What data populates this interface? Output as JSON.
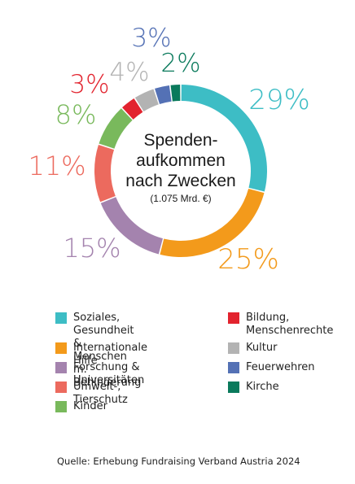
{
  "chart_data": {
    "type": "donut",
    "title_lines": [
      "Spenden-",
      "aufkommen",
      "nach Zwecken"
    ],
    "subtitle": "(1.075 Mrd. €)",
    "slices": [
      {
        "label": "Soziales, Gesundheit & Menschen m. Behinderung",
        "value": 29,
        "pct_label": "29%",
        "color": "#3dbdc5"
      },
      {
        "label": "Internationale Hilfe",
        "value": 25,
        "pct_label": "25%",
        "color": "#f39a1b"
      },
      {
        "label": "Forschung & Universitäten",
        "value": 15,
        "pct_label": "15%",
        "color": "#a483ae"
      },
      {
        "label": "Umwelt-, Tierschutz",
        "value": 11,
        "pct_label": "11%",
        "color": "#ec6a5e"
      },
      {
        "label": "Kinder",
        "value": 8,
        "pct_label": "8%",
        "color": "#79b95c"
      },
      {
        "label": "Bildung, Menschenrechte",
        "value": 3,
        "pct_label": "3%",
        "color": "#e2232e"
      },
      {
        "label": "Kultur",
        "value": 4,
        "pct_label": "4%",
        "color": "#b3b3b3"
      },
      {
        "label": "Feuerwehren",
        "value": 3,
        "pct_label": "3%",
        "color": "#5471b5"
      },
      {
        "label": "Kirche",
        "value": 2,
        "pct_label": "2%",
        "color": "#0a7a5c"
      }
    ]
  },
  "legend": {
    "left": [
      {
        "lines": [
          "Soziales, Gesundheit &",
          "Menschen m. Behinderung"
        ],
        "color": "#3dbdc5"
      },
      {
        "lines": [
          "Internationale Hilfe"
        ],
        "color": "#f39a1b"
      },
      {
        "lines": [
          "Forschung & Universitäten"
        ],
        "color": "#a483ae"
      },
      {
        "lines": [
          "Umwelt-, Tierschutz"
        ],
        "color": "#ec6a5e"
      },
      {
        "lines": [
          "Kinder"
        ],
        "color": "#79b95c"
      }
    ],
    "right": [
      {
        "lines": [
          "Bildung,",
          "Menschenrechte"
        ],
        "color": "#e2232e"
      },
      {
        "lines": [
          "Kultur"
        ],
        "color": "#b3b3b3"
      },
      {
        "lines": [
          "Feuerwehren"
        ],
        "color": "#5471b5"
      },
      {
        "lines": [
          "Kirche"
        ],
        "color": "#0a7a5c"
      }
    ]
  },
  "source": "Quelle: Erhebung Fundraising Verband Austria 2024"
}
